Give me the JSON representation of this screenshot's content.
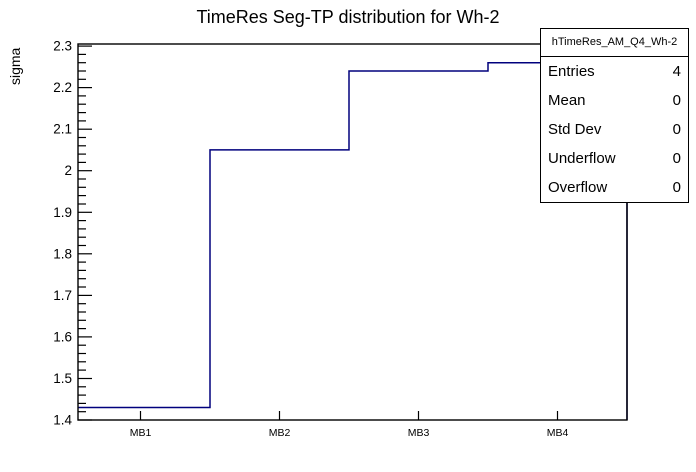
{
  "title": "TimeRes Seg-TP distribution for Wh-2",
  "chart_data": {
    "type": "step-histogram",
    "title": "TimeRes Seg-TP distribution for Wh-2",
    "categories": [
      "MB1",
      "MB2",
      "MB3",
      "MB4"
    ],
    "values": [
      1.43,
      2.05,
      2.24,
      2.26
    ],
    "xlabel": "",
    "ylabel": "sigma",
    "ylim": [
      1.4,
      2.305
    ],
    "y_major_step": 0.1,
    "y_minor_step": 0.02,
    "x_domain": [
      0.55,
      4.5
    ],
    "grid": false,
    "legend": "none",
    "line_color": "#00007d"
  },
  "stats_box": {
    "header": "hTimeRes_AM_Q4_Wh-2",
    "rows": [
      {
        "label": "Entries",
        "value": "4"
      },
      {
        "label": "Mean",
        "value": "0"
      },
      {
        "label": "Std Dev",
        "value": "0"
      },
      {
        "label": "Underflow",
        "value": "0"
      },
      {
        "label": "Overflow",
        "value": "0"
      }
    ]
  },
  "colors": {
    "background": "#ffffff",
    "frame": "#000000",
    "histogram_line": "#00007d",
    "text": "#000000"
  }
}
